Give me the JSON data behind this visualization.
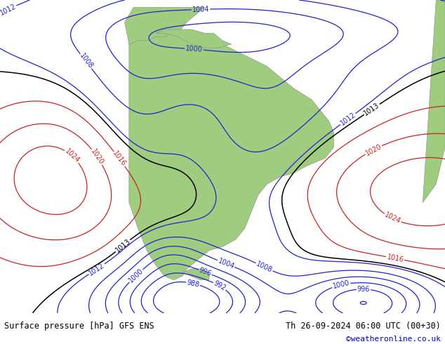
{
  "title_left": "Surface pressure [hPa] GFS ENS",
  "title_right": "Th 26-09-2024 06:00 UTC (00+30)",
  "copyright": "©weatheronline.co.uk",
  "bg_color": "#c8d0dc",
  "land_color": "#a0cc80",
  "fig_width": 6.34,
  "fig_height": 4.9,
  "dpi": 100,
  "bottom_bar_color": "#d8d8d8",
  "isobar_levels_blue": [
    988,
    992,
    996,
    1000,
    1004,
    1008,
    1012
  ],
  "isobar_levels_red": [
    1016,
    1020,
    1024
  ],
  "isobar_levels_black": [
    1013
  ],
  "label_fontsize": 7,
  "title_fontsize": 8.5,
  "copyright_color": "#0000cc",
  "lon_min": -110,
  "lon_max": -10,
  "lat_min": -65,
  "lat_max": 20
}
